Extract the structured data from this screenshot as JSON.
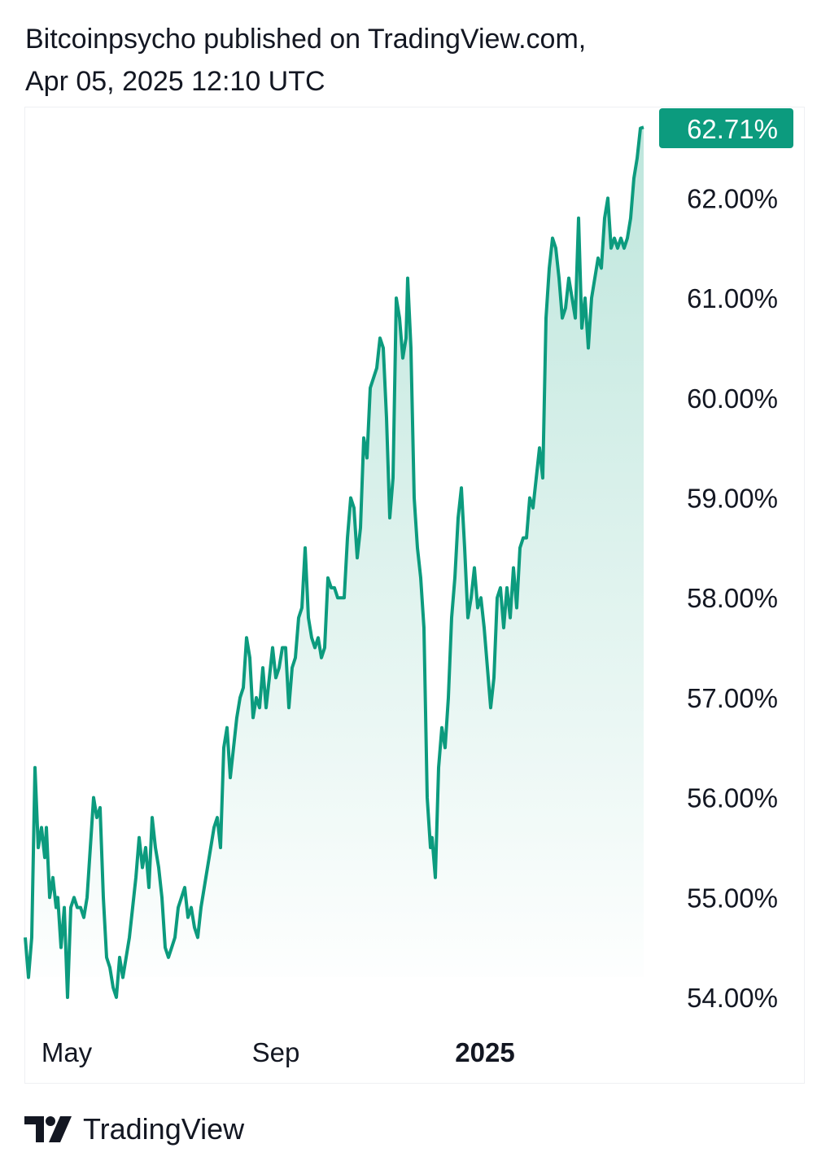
{
  "header": {
    "line1": "Bitcoinpsycho published on TradingView.com,",
    "line2": "Apr 05, 2025 12:10 UTC"
  },
  "footer": {
    "brand": "TradingView",
    "logo_icon": "tradingview-logo-icon"
  },
  "colors": {
    "line": "#0c9b7e",
    "fill_top": "#b6e3d8",
    "fill_bottom": "#ffffff",
    "badge": "#0c9b7e",
    "text": "#131722"
  },
  "chart_data": {
    "type": "area",
    "title": "",
    "xlabel": "",
    "ylabel": "",
    "ylim": [
      53.9,
      62.85
    ],
    "y_ticks": [
      {
        "value": 62.0,
        "label": "62.00%"
      },
      {
        "value": 61.0,
        "label": "61.00%"
      },
      {
        "value": 60.0,
        "label": "60.00%"
      },
      {
        "value": 59.0,
        "label": "59.00%"
      },
      {
        "value": 58.0,
        "label": "58.00%"
      },
      {
        "value": 57.0,
        "label": "57.00%"
      },
      {
        "value": 56.0,
        "label": "56.00%"
      },
      {
        "value": 55.0,
        "label": "55.00%"
      },
      {
        "value": 54.0,
        "label": "54.00%"
      }
    ],
    "x_ticks": [
      {
        "label": "May",
        "date": "2024-05-01",
        "bold": false
      },
      {
        "label": "Sep",
        "date": "2024-09-01",
        "bold": false
      },
      {
        "label": "2025",
        "date": "2025-01-01",
        "bold": true
      }
    ],
    "x_range": [
      "2024-04-06",
      "2025-04-05"
    ],
    "last_value_label": "62.71%",
    "last_value": 62.71,
    "grid": false,
    "series": [
      {
        "values": [
          [
            0,
            54.6
          ],
          [
            2,
            54.2
          ],
          [
            4,
            54.6
          ],
          [
            6,
            56.3
          ],
          [
            8,
            55.5
          ],
          [
            10,
            55.7
          ],
          [
            12,
            55.4
          ],
          [
            13,
            55.7
          ],
          [
            15,
            55.0
          ],
          [
            17,
            55.2
          ],
          [
            19,
            54.9
          ],
          [
            20,
            55.0
          ],
          [
            22,
            54.5
          ],
          [
            24,
            54.9
          ],
          [
            26,
            54.0
          ],
          [
            28,
            54.9
          ],
          [
            30,
            55.0
          ],
          [
            32,
            54.9
          ],
          [
            34,
            54.9
          ],
          [
            36,
            54.8
          ],
          [
            38,
            55.0
          ],
          [
            40,
            55.5
          ],
          [
            42,
            56.0
          ],
          [
            44,
            55.8
          ],
          [
            46,
            55.9
          ],
          [
            48,
            55.0
          ],
          [
            50,
            54.4
          ],
          [
            52,
            54.3
          ],
          [
            54,
            54.1
          ],
          [
            56,
            54.0
          ],
          [
            58,
            54.4
          ],
          [
            60,
            54.2
          ],
          [
            62,
            54.4
          ],
          [
            64,
            54.6
          ],
          [
            66,
            54.9
          ],
          [
            68,
            55.2
          ],
          [
            70,
            55.6
          ],
          [
            72,
            55.3
          ],
          [
            74,
            55.5
          ],
          [
            76,
            55.1
          ],
          [
            78,
            55.8
          ],
          [
            80,
            55.5
          ],
          [
            82,
            55.3
          ],
          [
            84,
            55.0
          ],
          [
            86,
            54.5
          ],
          [
            88,
            54.4
          ],
          [
            90,
            54.5
          ],
          [
            92,
            54.6
          ],
          [
            94,
            54.9
          ],
          [
            96,
            55.0
          ],
          [
            98,
            55.1
          ],
          [
            100,
            54.8
          ],
          [
            102,
            54.9
          ],
          [
            104,
            54.7
          ],
          [
            106,
            54.6
          ],
          [
            108,
            54.9
          ],
          [
            110,
            55.1
          ],
          [
            112,
            55.3
          ],
          [
            114,
            55.5
          ],
          [
            116,
            55.7
          ],
          [
            118,
            55.8
          ],
          [
            120,
            55.5
          ],
          [
            122,
            56.5
          ],
          [
            124,
            56.7
          ],
          [
            126,
            56.2
          ],
          [
            128,
            56.5
          ],
          [
            130,
            56.8
          ],
          [
            132,
            57.0
          ],
          [
            134,
            57.1
          ],
          [
            136,
            57.6
          ],
          [
            138,
            57.4
          ],
          [
            140,
            56.8
          ],
          [
            142,
            57.0
          ],
          [
            144,
            56.9
          ],
          [
            146,
            57.3
          ],
          [
            148,
            56.9
          ],
          [
            150,
            57.2
          ],
          [
            152,
            57.5
          ],
          [
            154,
            57.2
          ],
          [
            156,
            57.3
          ],
          [
            158,
            57.5
          ],
          [
            160,
            57.5
          ],
          [
            162,
            56.9
          ],
          [
            164,
            57.3
          ],
          [
            166,
            57.4
          ],
          [
            168,
            57.8
          ],
          [
            170,
            57.9
          ],
          [
            172,
            58.5
          ],
          [
            174,
            57.8
          ],
          [
            176,
            57.6
          ],
          [
            178,
            57.5
          ],
          [
            180,
            57.6
          ],
          [
            182,
            57.4
          ],
          [
            184,
            57.5
          ],
          [
            186,
            58.2
          ],
          [
            188,
            58.1
          ],
          [
            190,
            58.1
          ],
          [
            192,
            58.0
          ],
          [
            194,
            58.0
          ],
          [
            196,
            58.0
          ],
          [
            198,
            58.6
          ],
          [
            200,
            59.0
          ],
          [
            202,
            58.9
          ],
          [
            204,
            58.4
          ],
          [
            206,
            58.7
          ],
          [
            208,
            59.6
          ],
          [
            210,
            59.4
          ],
          [
            212,
            60.1
          ],
          [
            214,
            60.2
          ],
          [
            216,
            60.3
          ],
          [
            218,
            60.6
          ],
          [
            220,
            60.5
          ],
          [
            222,
            59.8
          ],
          [
            224,
            58.8
          ],
          [
            226,
            59.2
          ],
          [
            228,
            61.0
          ],
          [
            230,
            60.8
          ],
          [
            232,
            60.4
          ],
          [
            234,
            60.6
          ],
          [
            235,
            61.2
          ],
          [
            237,
            60.5
          ],
          [
            239,
            59.0
          ],
          [
            241,
            58.5
          ],
          [
            243,
            58.2
          ],
          [
            245,
            57.7
          ],
          [
            247,
            56.0
          ],
          [
            249,
            55.5
          ],
          [
            250,
            55.6
          ],
          [
            252,
            55.2
          ],
          [
            254,
            56.3
          ],
          [
            256,
            56.7
          ],
          [
            258,
            56.5
          ],
          [
            260,
            57.0
          ],
          [
            262,
            57.8
          ],
          [
            264,
            58.2
          ],
          [
            266,
            58.8
          ],
          [
            268,
            59.1
          ],
          [
            270,
            58.5
          ],
          [
            272,
            57.8
          ],
          [
            274,
            58.0
          ],
          [
            276,
            58.3
          ],
          [
            278,
            57.9
          ],
          [
            280,
            58.0
          ],
          [
            282,
            57.7
          ],
          [
            284,
            57.3
          ],
          [
            286,
            56.9
          ],
          [
            288,
            57.2
          ],
          [
            290,
            58.0
          ],
          [
            292,
            58.1
          ],
          [
            294,
            57.7
          ],
          [
            296,
            58.1
          ],
          [
            298,
            57.8
          ],
          [
            300,
            58.3
          ],
          [
            302,
            57.9
          ],
          [
            304,
            58.5
          ],
          [
            306,
            58.6
          ],
          [
            308,
            58.6
          ],
          [
            310,
            59.0
          ],
          [
            312,
            58.9
          ],
          [
            314,
            59.2
          ],
          [
            316,
            59.5
          ],
          [
            318,
            59.2
          ],
          [
            320,
            60.8
          ],
          [
            322,
            61.3
          ],
          [
            324,
            61.6
          ],
          [
            326,
            61.5
          ],
          [
            328,
            61.2
          ],
          [
            330,
            60.8
          ],
          [
            332,
            60.9
          ],
          [
            334,
            61.2
          ],
          [
            336,
            61.0
          ],
          [
            338,
            60.8
          ],
          [
            340,
            61.8
          ],
          [
            342,
            60.7
          ],
          [
            344,
            61.0
          ],
          [
            346,
            60.5
          ],
          [
            348,
            61.0
          ],
          [
            350,
            61.2
          ],
          [
            352,
            61.4
          ],
          [
            354,
            61.3
          ],
          [
            356,
            61.8
          ],
          [
            358,
            62.0
          ],
          [
            360,
            61.5
          ],
          [
            362,
            61.6
          ],
          [
            364,
            61.5
          ],
          [
            366,
            61.6
          ],
          [
            368,
            61.5
          ],
          [
            370,
            61.6
          ],
          [
            372,
            61.8
          ],
          [
            374,
            62.2
          ],
          [
            376,
            62.4
          ],
          [
            378,
            62.7
          ],
          [
            380,
            62.71
          ]
        ]
      }
    ]
  }
}
